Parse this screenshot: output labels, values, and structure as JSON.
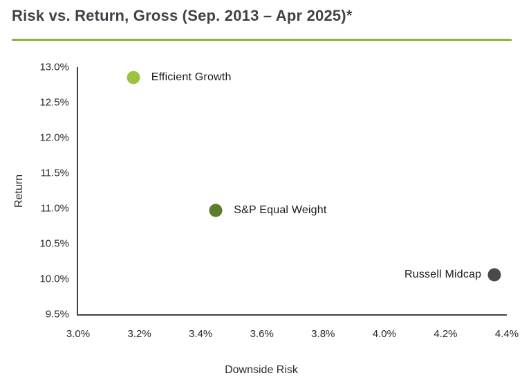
{
  "header": {
    "title": "Risk vs. Return, Gross (Sep. 2013 – Apr 2025)*"
  },
  "colors": {
    "accent_rule": "#87b73f",
    "axis_line": "#414141",
    "title_text": "#3d4348",
    "tick_text": "#27292c",
    "label_text": "#17191f",
    "efficient_growth_dot": "#9dc23e",
    "sp_equal_weight_dot": "#5c7e2c",
    "russell_midcap_dot": "#494949"
  },
  "chart_data": {
    "type": "scatter",
    "title": "Risk vs. Return, Gross (Sep. 2013 – Apr 2025)*",
    "xlabel": "Downside Risk",
    "ylabel": "Return",
    "xlim": [
      3.0,
      4.4
    ],
    "ylim": [
      9.5,
      13.0
    ],
    "grid": false,
    "legend_position": "none (direct point labels)",
    "x_ticks": [
      {
        "value": 3.0,
        "label": "3.0%"
      },
      {
        "value": 3.2,
        "label": "3.2%"
      },
      {
        "value": 3.4,
        "label": "3.4%"
      },
      {
        "value": 3.6,
        "label": "3.6%"
      },
      {
        "value": 3.8,
        "label": "3.8%"
      },
      {
        "value": 4.0,
        "label": "4.0%"
      },
      {
        "value": 4.2,
        "label": "4.2%"
      },
      {
        "value": 4.4,
        "label": "4.4%"
      }
    ],
    "y_ticks": [
      {
        "value": 13.0,
        "label": "13.0%"
      },
      {
        "value": 12.5,
        "label": "12.5%"
      },
      {
        "value": 12.0,
        "label": "12.0%"
      },
      {
        "value": 11.5,
        "label": "11.5%"
      },
      {
        "value": 11.0,
        "label": "11.0%"
      },
      {
        "value": 10.5,
        "label": "10.5%"
      },
      {
        "value": 10.0,
        "label": "10.0%"
      },
      {
        "value": 9.5,
        "label": "9.5%"
      }
    ],
    "points": [
      {
        "name": "Efficient Growth",
        "x": 3.18,
        "y": 12.85,
        "color": "#9dc23e",
        "label_side": "right"
      },
      {
        "name": "S&P Equal Weight",
        "x": 3.45,
        "y": 10.97,
        "color": "#5c7e2c",
        "label_side": "right"
      },
      {
        "name": "Russell Midcap",
        "x": 4.36,
        "y": 10.06,
        "color": "#494949",
        "label_side": "left"
      }
    ]
  }
}
